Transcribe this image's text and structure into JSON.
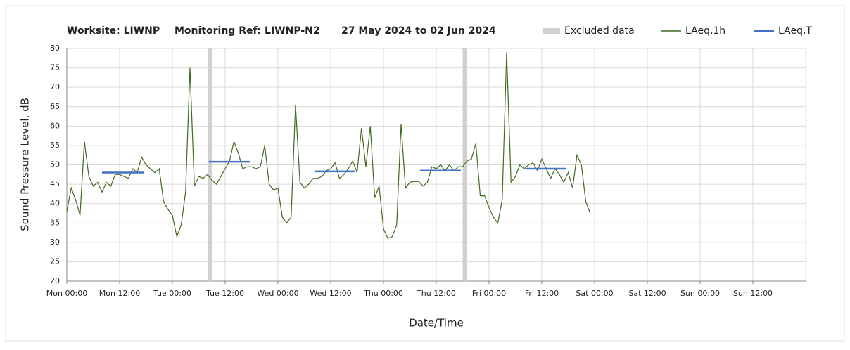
{
  "chart_data": {
    "type": "line",
    "title_parts": [
      "Worksite: LIWNP",
      "Monitoring Ref: LIWNP-N2",
      "27 May 2024 to 02 Jun 2024"
    ],
    "x_label": "Date/Time",
    "y_label": "Sound Pressure Level, dB",
    "xlim": [
      0,
      168
    ],
    "xticks": [
      {
        "value": 0,
        "label": "Mon 00:00"
      },
      {
        "value": 12,
        "label": "Mon 12:00"
      },
      {
        "value": 24,
        "label": "Tue 00:00"
      },
      {
        "value": 36,
        "label": "Tue 12:00"
      },
      {
        "value": 48,
        "label": "Wed 00:00"
      },
      {
        "value": 60,
        "label": "Wed 12:00"
      },
      {
        "value": 72,
        "label": "Thu 00:00"
      },
      {
        "value": 84,
        "label": "Thu 12:00"
      },
      {
        "value": 96,
        "label": "Fri 00:00"
      },
      {
        "value": 108,
        "label": "Fri 12:00"
      },
      {
        "value": 120,
        "label": "Sat 00:00"
      },
      {
        "value": 132,
        "label": "Sat 12:00"
      },
      {
        "value": 144,
        "label": "Sun 00:00"
      },
      {
        "value": 156,
        "label": "Sun 12:00"
      }
    ],
    "ylim": [
      20,
      80
    ],
    "yticks": [
      20,
      25,
      30,
      35,
      40,
      45,
      50,
      55,
      60,
      65,
      70,
      75,
      80
    ],
    "grid": true,
    "x": [
      0,
      1,
      2,
      3,
      4,
      5,
      6,
      7,
      8,
      9,
      10,
      11,
      12,
      13,
      14,
      15,
      16,
      17,
      18,
      19,
      20,
      21,
      22,
      23,
      24,
      25,
      26,
      27,
      28,
      29,
      30,
      31,
      32,
      33,
      34,
      35,
      36,
      37,
      38,
      39,
      40,
      41,
      42,
      43,
      44,
      45,
      46,
      47,
      48,
      49,
      50,
      51,
      52,
      53,
      54,
      55,
      56,
      57,
      58,
      59,
      60,
      61,
      62,
      63,
      64,
      65,
      66,
      67,
      68,
      69,
      70,
      71,
      72,
      73,
      74,
      75,
      76,
      77,
      78,
      79,
      80,
      81,
      82,
      83,
      84,
      85,
      86,
      87,
      88,
      89,
      90,
      91,
      92,
      93,
      94,
      95,
      96,
      97,
      98,
      99,
      100,
      101,
      102,
      103,
      104,
      105,
      106,
      107,
      108,
      109,
      110,
      111,
      112,
      113,
      114,
      115,
      116,
      117,
      118,
      119
    ],
    "series": [
      {
        "name": "LAeq,1h",
        "color": "#3f6a22",
        "values": [
          38,
          44,
          41,
          37,
          56,
          47,
          44.5,
          45.5,
          43,
          45.5,
          44.5,
          47.5,
          47.5,
          47,
          46.5,
          49,
          48,
          52,
          50,
          49,
          48,
          49,
          40.5,
          38.5,
          37,
          31.5,
          34.5,
          43,
          75,
          44.5,
          47,
          46.5,
          47.5,
          46,
          45,
          47,
          49,
          51,
          56,
          53,
          49,
          49.5,
          49.5,
          49,
          49.5,
          55,
          45,
          43.5,
          44,
          36.5,
          35,
          36.5,
          65.5,
          45.5,
          44,
          45,
          46.5,
          46.5,
          47,
          48.5,
          49,
          50.5,
          46.5,
          47.5,
          49,
          51,
          48,
          59.5,
          49.5,
          60,
          41.5,
          44.5,
          33.5,
          31,
          31.5,
          34.5,
          60.5,
          44,
          45.5,
          45.7,
          45.7,
          44.5,
          45.5,
          49.5,
          49,
          50,
          48.5,
          50,
          48.5,
          49.5,
          49.5,
          51,
          51.5,
          55.5,
          42,
          42,
          39,
          36.5,
          35,
          41,
          79,
          45.5,
          47,
          50,
          49,
          50,
          50.5,
          48.5,
          51.5,
          49,
          46.5,
          49,
          47.5,
          45.5,
          48,
          44,
          52.5,
          50,
          40.5,
          37.5
        ]
      }
    ],
    "average": {
      "name": "LAeq,T",
      "color": "#4472c4",
      "segments": [
        {
          "x": [
            8,
            17.6
          ],
          "value": 48
        },
        {
          "x": [
            32.3,
            41.6
          ],
          "value": 50.8
        },
        {
          "x": [
            56.3,
            65.6
          ],
          "value": 48.3
        },
        {
          "x": [
            80.3,
            89.6
          ],
          "value": 48.5
        },
        {
          "x": [
            104.3,
            113.6
          ],
          "value": 49
        }
      ]
    },
    "excluded": {
      "name": "Excluded data",
      "color": "#d0d0d0",
      "ranges": [
        [
          32,
          33
        ],
        [
          90,
          91
        ]
      ]
    }
  }
}
